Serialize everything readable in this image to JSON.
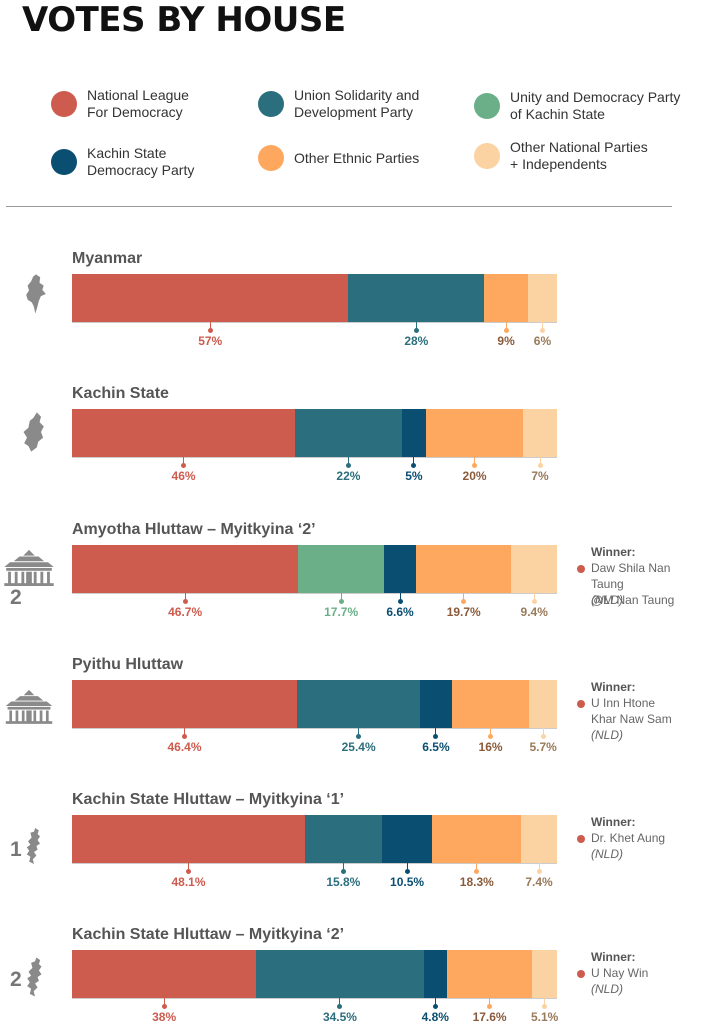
{
  "title": "VOTES BY HOUSE",
  "colors": {
    "nld": "#cd5b4e",
    "usdp": "#2b6e7d",
    "udpks": "#6aaf87",
    "ksdp": "#0a4e72",
    "ethnic": "#fda85e",
    "other": "#fbd3a2"
  },
  "legend": [
    {
      "key": "nld",
      "label": "National League\nFor Democracy"
    },
    {
      "key": "usdp",
      "label": "Union Solidarity and\nDevelopment Party"
    },
    {
      "key": "udpks",
      "label": "Unity and Democracy Party\nof Kachin State"
    },
    {
      "key": "ksdp",
      "label": "Kachin State\nDemocracy Party"
    },
    {
      "key": "ethnic",
      "label": "Other Ethnic Parties"
    },
    {
      "key": "other",
      "label": "Other National Parties\n+ Independents"
    }
  ],
  "chart_data": {
    "type": "bar",
    "orientation": "horizontal-stacked-100",
    "series_keys": [
      "nld",
      "usdp",
      "udpks",
      "ksdp",
      "ethnic",
      "other"
    ],
    "rows": [
      {
        "title": "Myanmar",
        "icon": "myanmar-map-icon",
        "badge": "",
        "values": {
          "nld": 57,
          "usdp": 28,
          "ethnic": 9,
          "other": 6
        },
        "labels": {
          "nld": "57%",
          "usdp": "28%",
          "ethnic": "9%",
          "other": "6%"
        },
        "winner": null
      },
      {
        "title": "Kachin State",
        "icon": "kachin-map-icon",
        "badge": "",
        "values": {
          "nld": 46,
          "usdp": 22,
          "ksdp": 5,
          "ethnic": 20,
          "other": 7
        },
        "labels": {
          "nld": "46%",
          "usdp": "22%",
          "ksdp": "5%",
          "ethnic": "20%",
          "other": "7%"
        },
        "winner": null
      },
      {
        "title": "Amyotha Hluttaw – Myitkyina ‘2’",
        "icon": "parliament-building-icon",
        "badge": "2",
        "values": {
          "nld": 46.7,
          "udpks": 17.7,
          "ksdp": 6.6,
          "ethnic": 19.7,
          "other": 9.4
        },
        "labels": {
          "nld": "46.7%",
          "udpks": "17.7%",
          "ksdp": "6.6%",
          "ethnic": "19.7%",
          "other": "9.4%"
        },
        "winner": {
          "head": "Winner:",
          "name": "Daw Shila Nan Taung\n@M Nan Taung",
          "party": "(NLD)"
        }
      },
      {
        "title": "Pyithu Hluttaw",
        "icon": "parliament-building-icon",
        "badge": "",
        "values": {
          "nld": 46.4,
          "usdp": 25.4,
          "ksdp": 6.5,
          "ethnic": 16,
          "other": 5.7
        },
        "labels": {
          "nld": "46.4%",
          "usdp": "25.4%",
          "ksdp": "6.5%",
          "ethnic": "16%",
          "other": "5.7%"
        },
        "winner": {
          "head": "Winner:",
          "name": "U Inn Htone\nKhar Naw Sam",
          "party": "(NLD)"
        }
      },
      {
        "title": "Kachin State Hluttaw – Myitkyina ‘1’",
        "icon": "constituency-map-icon",
        "badge": "1",
        "values": {
          "nld": 48.1,
          "usdp": 15.8,
          "ksdp": 10.5,
          "ethnic": 18.3,
          "other": 7.4
        },
        "labels": {
          "nld": "48.1%",
          "usdp": "15.8%",
          "ksdp": "10.5%",
          "ethnic": "18.3%",
          "other": "7.4%"
        },
        "winner": {
          "head": "Winner:",
          "name": "Dr. Khet Aung",
          "party": "(NLD)"
        }
      },
      {
        "title": "Kachin State Hluttaw – Myitkyina ‘2’",
        "icon": "constituency-map-icon",
        "badge": "2",
        "values": {
          "nld": 38,
          "usdp": 34.5,
          "ksdp": 4.8,
          "ethnic": 17.6,
          "other": 5.1
        },
        "labels": {
          "nld": "38%",
          "usdp": "34.5%",
          "ksdp": "4.8%",
          "ethnic": "17.6%",
          "other": "5.1%"
        },
        "winner": {
          "head": "Winner:",
          "name": "U Nay Win",
          "party": "(NLD)"
        }
      }
    ]
  }
}
